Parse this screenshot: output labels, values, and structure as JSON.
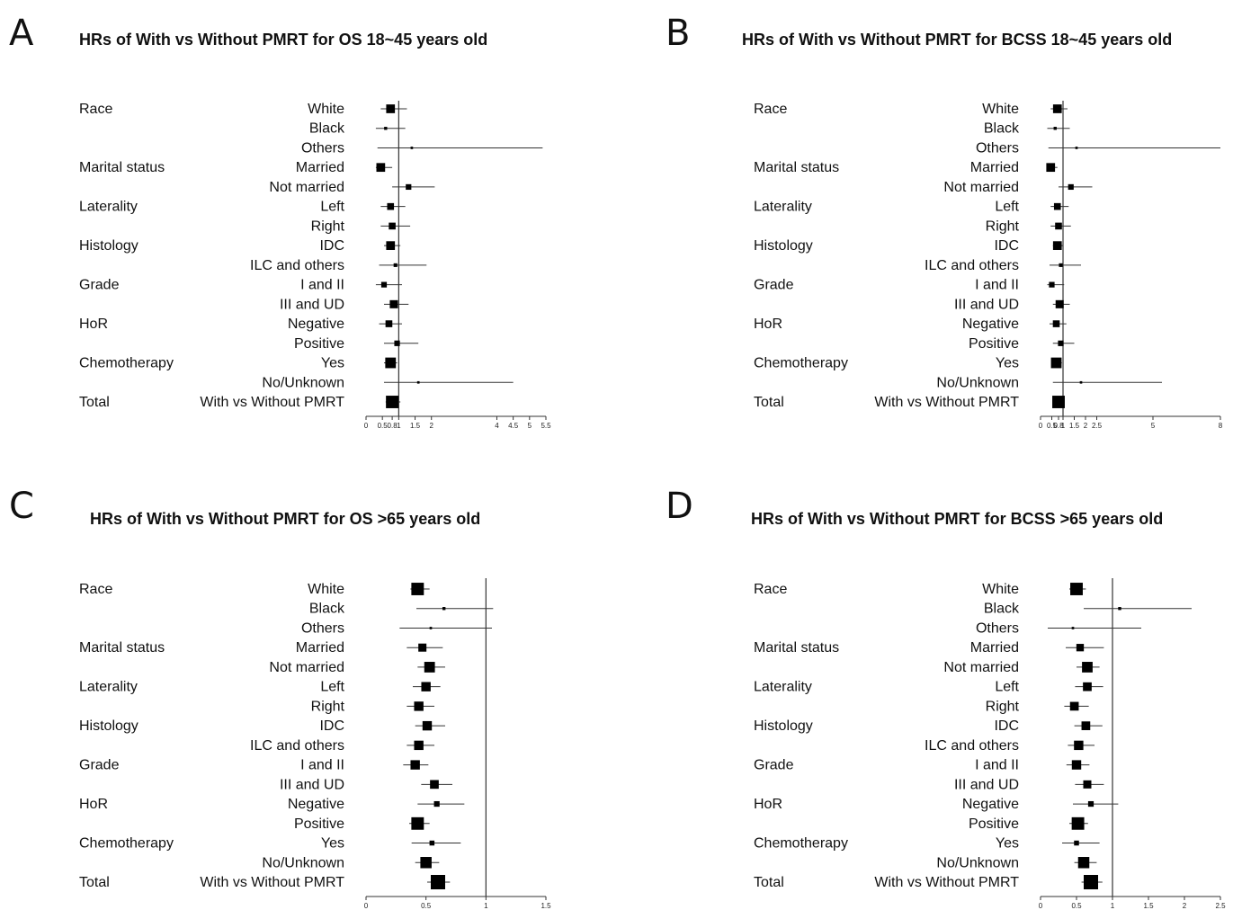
{
  "chart_data": [
    {
      "panel": "A",
      "type": "forest",
      "title": "HRs of With vs Without PMRT for OS 18~45 years old",
      "reference_line": 1,
      "xlim": [
        0,
        5.5
      ],
      "x_ticks": [
        "0",
        "0.5",
        "0.8",
        "1",
        "1.5",
        "2",
        "4",
        "4.5",
        "5",
        "5.5"
      ],
      "rows": [
        {
          "category": "Race",
          "label": "White",
          "hr": 0.75,
          "lo": 0.45,
          "hi": 1.25,
          "weight": 0.55
        },
        {
          "category": "",
          "label": "Black",
          "hr": 0.6,
          "lo": 0.3,
          "hi": 1.2,
          "weight": 0.1
        },
        {
          "category": "",
          "label": "Others",
          "hr": 1.4,
          "lo": 0.35,
          "hi": 5.4,
          "weight": 0.05
        },
        {
          "category": "Marital status",
          "label": "Married",
          "hr": 0.45,
          "lo": 0.3,
          "hi": 0.8,
          "weight": 0.55
        },
        {
          "category": "",
          "label": "Not married",
          "hr": 1.3,
          "lo": 0.8,
          "hi": 2.1,
          "weight": 0.3
        },
        {
          "category": "Laterality",
          "label": "Left",
          "hr": 0.75,
          "lo": 0.45,
          "hi": 1.2,
          "weight": 0.4
        },
        {
          "category": "",
          "label": "Right",
          "hr": 0.8,
          "lo": 0.45,
          "hi": 1.35,
          "weight": 0.4
        },
        {
          "category": "Histology",
          "label": "IDC",
          "hr": 0.75,
          "lo": 0.55,
          "hi": 1.05,
          "weight": 0.55
        },
        {
          "category": "",
          "label": "ILC and others",
          "hr": 0.9,
          "lo": 0.4,
          "hi": 1.85,
          "weight": 0.15
        },
        {
          "category": "Grade",
          "label": "I and II",
          "hr": 0.55,
          "lo": 0.3,
          "hi": 1.1,
          "weight": 0.3
        },
        {
          "category": "",
          "label": "III and UD",
          "hr": 0.85,
          "lo": 0.55,
          "hi": 1.3,
          "weight": 0.5
        },
        {
          "category": "HoR",
          "label": "Negative",
          "hr": 0.7,
          "lo": 0.4,
          "hi": 1.1,
          "weight": 0.4
        },
        {
          "category": "",
          "label": "Positive",
          "hr": 0.95,
          "lo": 0.55,
          "hi": 1.6,
          "weight": 0.3
        },
        {
          "category": "Chemotherapy",
          "label": "Yes",
          "hr": 0.75,
          "lo": 0.55,
          "hi": 0.95,
          "weight": 0.7
        },
        {
          "category": "",
          "label": "No/Unknown",
          "hr": 1.6,
          "lo": 0.55,
          "hi": 4.5,
          "weight": 0.05
        },
        {
          "category": "Total",
          "label": "With vs Without PMRT",
          "hr": 0.8,
          "lo": 0.6,
          "hi": 1.05,
          "weight": 0.85
        }
      ]
    },
    {
      "panel": "B",
      "type": "forest",
      "title": "HRs of With vs Without PMRT for BCSS 18~45 years old",
      "reference_line": 1,
      "xlim": [
        0,
        8
      ],
      "x_ticks": [
        "0",
        "0.5",
        "0.8",
        "1",
        "1.5",
        "2",
        "2.5",
        "5",
        "8"
      ],
      "rows": [
        {
          "category": "Race",
          "label": "White",
          "hr": 0.75,
          "lo": 0.45,
          "hi": 1.2,
          "weight": 0.55
        },
        {
          "category": "",
          "label": "Black",
          "hr": 0.65,
          "lo": 0.3,
          "hi": 1.3,
          "weight": 0.1
        },
        {
          "category": "",
          "label": "Others",
          "hr": 1.6,
          "lo": 0.35,
          "hi": 8.0,
          "weight": 0.05
        },
        {
          "category": "Marital status",
          "label": "Married",
          "hr": 0.45,
          "lo": 0.3,
          "hi": 0.75,
          "weight": 0.55
        },
        {
          "category": "",
          "label": "Not married",
          "hr": 1.35,
          "lo": 0.8,
          "hi": 2.3,
          "weight": 0.3
        },
        {
          "category": "Laterality",
          "label": "Left",
          "hr": 0.75,
          "lo": 0.45,
          "hi": 1.25,
          "weight": 0.4
        },
        {
          "category": "",
          "label": "Right",
          "hr": 0.8,
          "lo": 0.45,
          "hi": 1.35,
          "weight": 0.4
        },
        {
          "category": "Histology",
          "label": "IDC",
          "hr": 0.75,
          "lo": 0.55,
          "hi": 1.0,
          "weight": 0.55
        },
        {
          "category": "",
          "label": "ILC and others",
          "hr": 0.9,
          "lo": 0.4,
          "hi": 1.8,
          "weight": 0.15
        },
        {
          "category": "Grade",
          "label": "I and II",
          "hr": 0.5,
          "lo": 0.3,
          "hi": 1.05,
          "weight": 0.3
        },
        {
          "category": "",
          "label": "III and UD",
          "hr": 0.85,
          "lo": 0.55,
          "hi": 1.3,
          "weight": 0.5
        },
        {
          "category": "HoR",
          "label": "Negative",
          "hr": 0.7,
          "lo": 0.4,
          "hi": 1.15,
          "weight": 0.4
        },
        {
          "category": "",
          "label": "Positive",
          "hr": 0.9,
          "lo": 0.55,
          "hi": 1.5,
          "weight": 0.3
        },
        {
          "category": "Chemotherapy",
          "label": "Yes",
          "hr": 0.7,
          "lo": 0.5,
          "hi": 0.95,
          "weight": 0.7
        },
        {
          "category": "",
          "label": "No/Unknown",
          "hr": 1.8,
          "lo": 0.55,
          "hi": 5.4,
          "weight": 0.05
        },
        {
          "category": "Total",
          "label": "With vs Without PMRT",
          "hr": 0.8,
          "lo": 0.6,
          "hi": 1.05,
          "weight": 0.85
        }
      ]
    },
    {
      "panel": "C",
      "type": "forest",
      "title": "HRs of With vs Without PMRT for OS >65 years old",
      "reference_line": 1,
      "xlim": [
        0,
        1.5
      ],
      "x_ticks": [
        "0",
        "0.5",
        "1",
        "1.5"
      ],
      "rows": [
        {
          "category": "Race",
          "label": "White",
          "hr": 0.43,
          "lo": 0.37,
          "hi": 0.53,
          "weight": 0.85
        },
        {
          "category": "",
          "label": "Black",
          "hr": 0.65,
          "lo": 0.42,
          "hi": 1.06,
          "weight": 0.1
        },
        {
          "category": "",
          "label": "Others",
          "hr": 0.54,
          "lo": 0.28,
          "hi": 1.05,
          "weight": 0.05
        },
        {
          "category": "Marital status",
          "label": "Married",
          "hr": 0.47,
          "lo": 0.34,
          "hi": 0.64,
          "weight": 0.5
        },
        {
          "category": "",
          "label": "Not married",
          "hr": 0.53,
          "lo": 0.43,
          "hi": 0.66,
          "weight": 0.7
        },
        {
          "category": "Laterality",
          "label": "Left",
          "hr": 0.5,
          "lo": 0.39,
          "hi": 0.62,
          "weight": 0.6
        },
        {
          "category": "",
          "label": "Right",
          "hr": 0.44,
          "lo": 0.34,
          "hi": 0.57,
          "weight": 0.6
        },
        {
          "category": "Histology",
          "label": "IDC",
          "hr": 0.51,
          "lo": 0.41,
          "hi": 0.66,
          "weight": 0.6
        },
        {
          "category": "",
          "label": "ILC and others",
          "hr": 0.44,
          "lo": 0.34,
          "hi": 0.57,
          "weight": 0.6
        },
        {
          "category": "Grade",
          "label": "I and II",
          "hr": 0.41,
          "lo": 0.31,
          "hi": 0.52,
          "weight": 0.6
        },
        {
          "category": "",
          "label": "III and UD",
          "hr": 0.57,
          "lo": 0.46,
          "hi": 0.72,
          "weight": 0.55
        },
        {
          "category": "HoR",
          "label": "Negative",
          "hr": 0.59,
          "lo": 0.43,
          "hi": 0.82,
          "weight": 0.3
        },
        {
          "category": "",
          "label": "Positive",
          "hr": 0.43,
          "lo": 0.36,
          "hi": 0.53,
          "weight": 0.85
        },
        {
          "category": "Chemotherapy",
          "label": "Yes",
          "hr": 0.55,
          "lo": 0.38,
          "hi": 0.79,
          "weight": 0.25
        },
        {
          "category": "",
          "label": "No/Unknown",
          "hr": 0.5,
          "lo": 0.41,
          "hi": 0.61,
          "weight": 0.75
        },
        {
          "category": "Total",
          "label": "With vs Without PMRT",
          "hr": 0.6,
          "lo": 0.51,
          "hi": 0.7,
          "weight": 1.0
        }
      ]
    },
    {
      "panel": "D",
      "type": "forest",
      "title": "HRs of With vs Without PMRT for BCSS >65 years old",
      "reference_line": 1,
      "xlim": [
        0,
        2.5
      ],
      "x_ticks": [
        "0",
        "0.5",
        "1",
        "1.5",
        "2",
        "2.5"
      ],
      "rows": [
        {
          "category": "Race",
          "label": "White",
          "hr": 0.5,
          "lo": 0.4,
          "hi": 0.63,
          "weight": 0.85
        },
        {
          "category": "",
          "label": "Black",
          "hr": 1.1,
          "lo": 0.6,
          "hi": 2.1,
          "weight": 0.1
        },
        {
          "category": "",
          "label": "Others",
          "hr": 0.45,
          "lo": 0.1,
          "hi": 1.4,
          "weight": 0.05
        },
        {
          "category": "Marital status",
          "label": "Married",
          "hr": 0.55,
          "lo": 0.35,
          "hi": 0.88,
          "weight": 0.45
        },
        {
          "category": "",
          "label": "Not married",
          "hr": 0.65,
          "lo": 0.5,
          "hi": 0.82,
          "weight": 0.7
        },
        {
          "category": "Laterality",
          "label": "Left",
          "hr": 0.65,
          "lo": 0.48,
          "hi": 0.87,
          "weight": 0.55
        },
        {
          "category": "",
          "label": "Right",
          "hr": 0.47,
          "lo": 0.33,
          "hi": 0.67,
          "weight": 0.55
        },
        {
          "category": "Histology",
          "label": "IDC",
          "hr": 0.63,
          "lo": 0.47,
          "hi": 0.86,
          "weight": 0.55
        },
        {
          "category": "",
          "label": "ILC and others",
          "hr": 0.53,
          "lo": 0.38,
          "hi": 0.75,
          "weight": 0.6
        },
        {
          "category": "Grade",
          "label": "I and II",
          "hr": 0.5,
          "lo": 0.36,
          "hi": 0.68,
          "weight": 0.6
        },
        {
          "category": "",
          "label": "III and UD",
          "hr": 0.65,
          "lo": 0.48,
          "hi": 0.88,
          "weight": 0.5
        },
        {
          "category": "HoR",
          "label": "Negative",
          "hr": 0.7,
          "lo": 0.45,
          "hi": 1.08,
          "weight": 0.3
        },
        {
          "category": "",
          "label": "Positive",
          "hr": 0.52,
          "lo": 0.4,
          "hi": 0.66,
          "weight": 0.85
        },
        {
          "category": "Chemotherapy",
          "label": "Yes",
          "hr": 0.5,
          "lo": 0.3,
          "hi": 0.82,
          "weight": 0.25
        },
        {
          "category": "",
          "label": "No/Unknown",
          "hr": 0.6,
          "lo": 0.47,
          "hi": 0.78,
          "weight": 0.75
        },
        {
          "category": "Total",
          "label": "With vs Without PMRT",
          "hr": 0.7,
          "lo": 0.57,
          "hi": 0.86,
          "weight": 1.0
        }
      ]
    }
  ]
}
